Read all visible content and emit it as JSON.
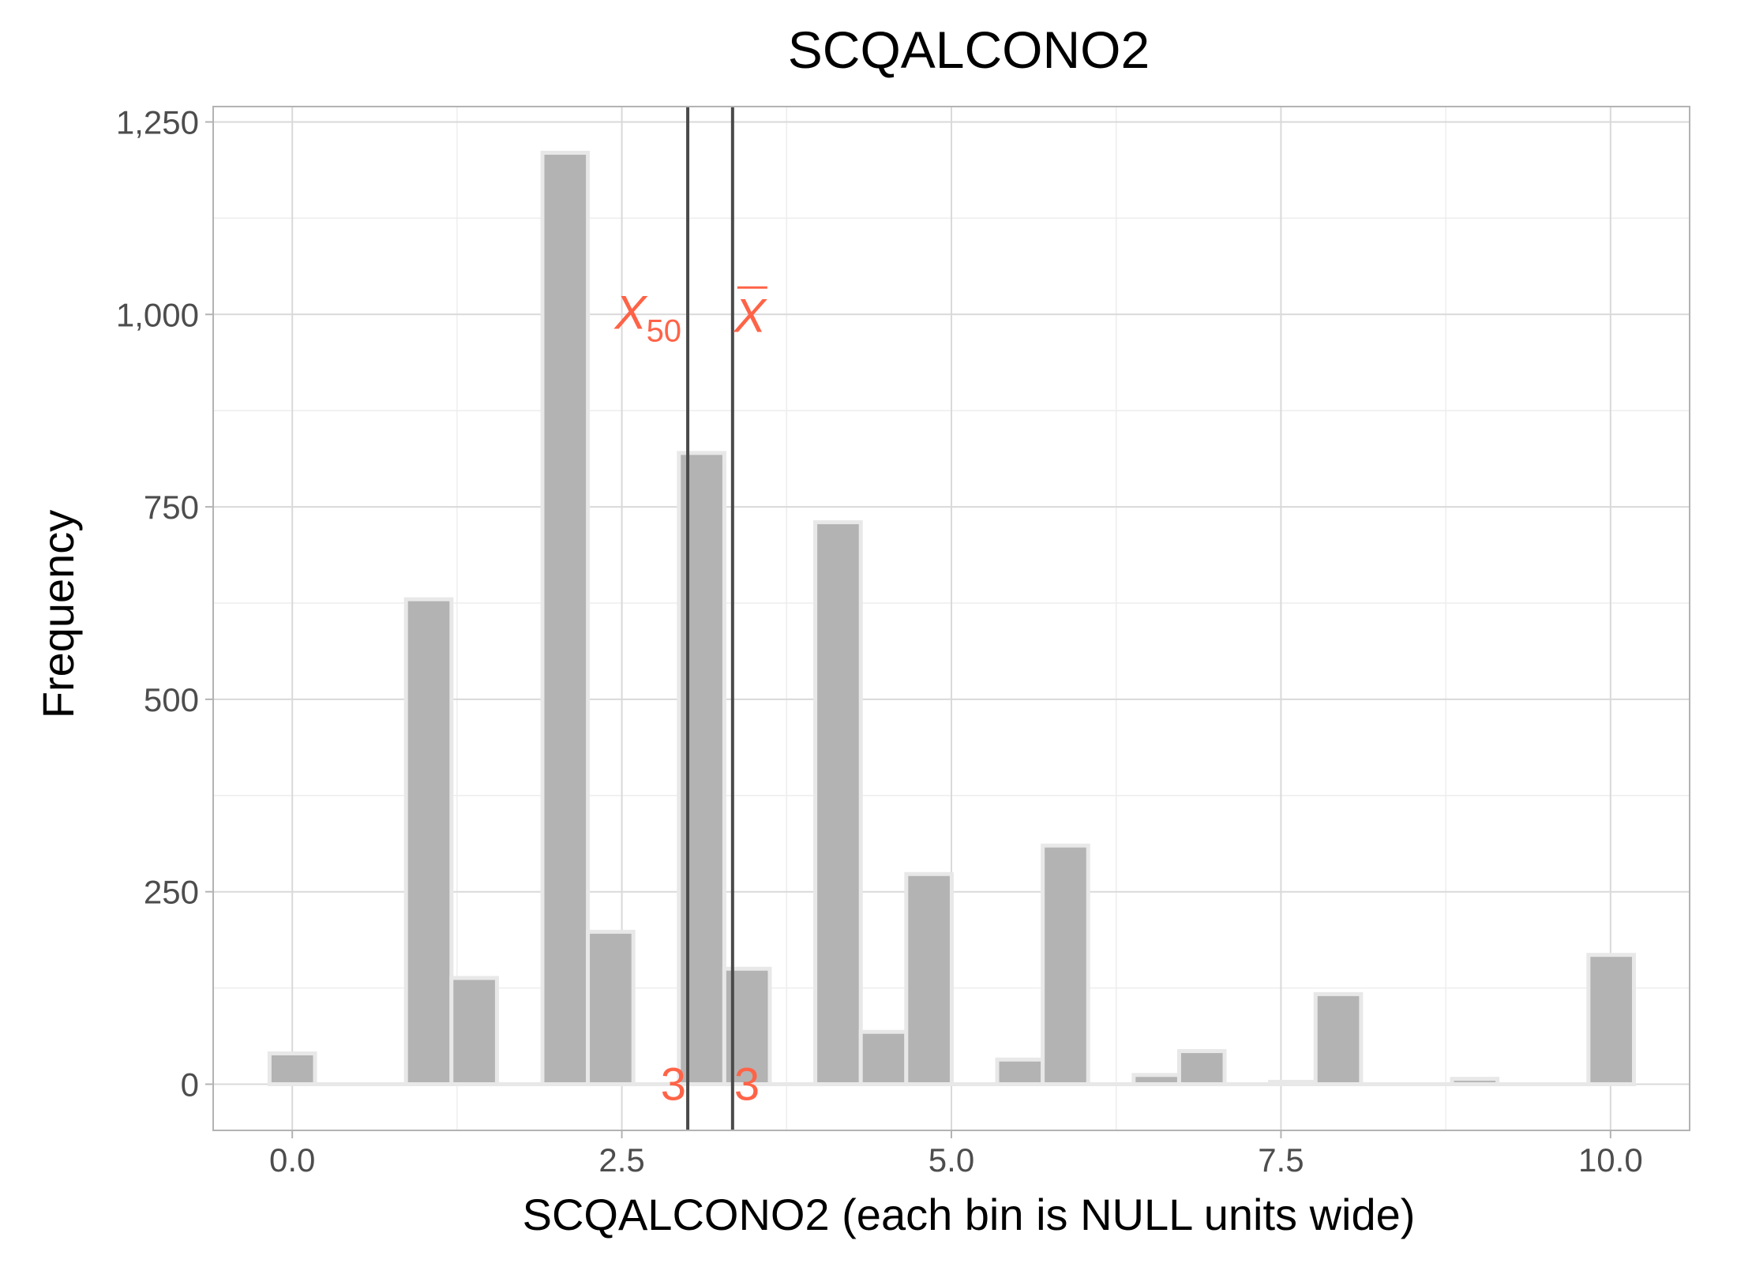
{
  "chart_data": {
    "type": "bar",
    "title": "SCQALCONO2",
    "xlabel": "SCQALCONO2 (each bin is NULL units wide)",
    "ylabel": "Frequency",
    "xlim": [
      -0.6,
      10.6
    ],
    "ylim": [
      -60,
      1270
    ],
    "x_ticks": [
      0,
      2.5,
      5,
      7.5,
      10
    ],
    "x_tick_labels": [
      "0.0",
      "2.5",
      "5.0",
      "7.5",
      "10.0"
    ],
    "y_ticks": [
      0,
      250,
      500,
      750,
      1000,
      1250
    ],
    "y_tick_labels": [
      "0",
      "250",
      "500",
      "750",
      "1,000",
      "1,250"
    ],
    "grid": true,
    "bin_width": 0.345,
    "bins": [
      {
        "x": 0.0,
        "count": 40
      },
      {
        "x": 0.345,
        "count": 0
      },
      {
        "x": 0.69,
        "count": 0
      },
      {
        "x": 1.035,
        "count": 630
      },
      {
        "x": 1.38,
        "count": 138
      },
      {
        "x": 1.725,
        "count": 0
      },
      {
        "x": 2.07,
        "count": 1210
      },
      {
        "x": 2.415,
        "count": 198
      },
      {
        "x": 2.76,
        "count": 0
      },
      {
        "x": 3.105,
        "count": 820
      },
      {
        "x": 3.45,
        "count": 150
      },
      {
        "x": 3.795,
        "count": 0
      },
      {
        "x": 4.14,
        "count": 730
      },
      {
        "x": 4.485,
        "count": 68
      },
      {
        "x": 4.83,
        "count": 273
      },
      {
        "x": 5.175,
        "count": 0
      },
      {
        "x": 5.52,
        "count": 32
      },
      {
        "x": 5.865,
        "count": 310
      },
      {
        "x": 6.21,
        "count": 0
      },
      {
        "x": 6.555,
        "count": 12
      },
      {
        "x": 6.9,
        "count": 43
      },
      {
        "x": 7.245,
        "count": 0
      },
      {
        "x": 7.59,
        "count": 3
      },
      {
        "x": 7.935,
        "count": 117
      },
      {
        "x": 8.28,
        "count": 0
      },
      {
        "x": 8.625,
        "count": 0
      },
      {
        "x": 8.97,
        "count": 7
      },
      {
        "x": 9.315,
        "count": 0
      },
      {
        "x": 9.66,
        "count": 0
      },
      {
        "x": 10.005,
        "count": 168
      }
    ],
    "reference_lines": [
      {
        "name": "median",
        "symbol": "X",
        "subscript": "50",
        "x": 3.0,
        "value_label": "3"
      },
      {
        "name": "mean",
        "symbol": "X",
        "overline": true,
        "x": 3.34,
        "value_label": "3"
      }
    ],
    "colors": {
      "bar_fill": "#b3b3b3",
      "bar_outline": "#e8e8e8",
      "reference_line": "#4a4a4a",
      "annotation": "#ff6347",
      "grid_major": "#d9d9d9",
      "grid_minor": "#ededed",
      "panel_border": "#b3b3b3"
    }
  }
}
